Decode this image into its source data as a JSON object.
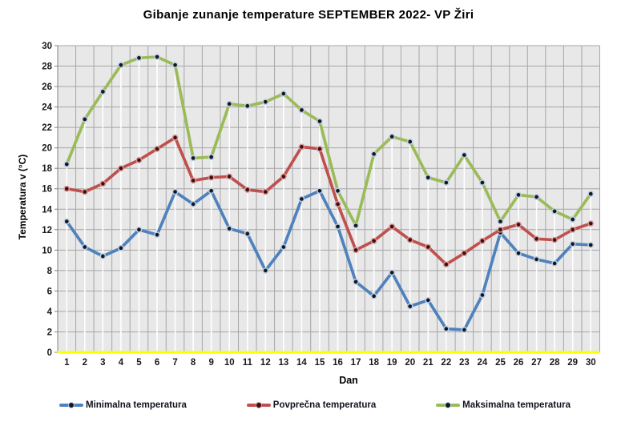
{
  "title": "Gibanje zunanje temperature SEPTEMBER 2022- VP Žiri",
  "chart_data": {
    "type": "line",
    "x": [
      1,
      2,
      3,
      4,
      5,
      6,
      7,
      8,
      9,
      10,
      11,
      12,
      13,
      14,
      15,
      16,
      17,
      18,
      19,
      20,
      21,
      22,
      23,
      24,
      25,
      26,
      27,
      28,
      29,
      30
    ],
    "xlabel": "Dan",
    "ylabel": "Temperatura v (°C)",
    "ylim": [
      0,
      30
    ],
    "ytick_step": 2,
    "grid": true,
    "legend_position": "bottom",
    "plot_bg": "#E8E8E8",
    "gridline_color": "#A6A6A6",
    "axis_line_color": "#808080",
    "zero_line_color": "#FFFF00",
    "dropline_color": "#FFFFFF",
    "series": [
      {
        "name": "Minimalna temperatura",
        "color": "#4F81BD",
        "marker_fill": "#16161f",
        "marker_ring": "#b9cde5",
        "values": [
          12.8,
          10.3,
          9.4,
          10.2,
          12.0,
          11.5,
          15.7,
          14.5,
          15.8,
          12.1,
          11.6,
          8.0,
          10.3,
          15.0,
          15.8,
          12.3,
          6.9,
          5.5,
          7.8,
          4.5,
          5.1,
          2.3,
          2.2,
          5.6,
          11.7,
          9.7,
          9.1,
          8.7,
          10.6,
          10.5
        ]
      },
      {
        "name": "Povprečna temperatura",
        "color": "#C0504D",
        "marker_fill": "#3a1114",
        "marker_ring": "#d99694",
        "values": [
          16.0,
          15.7,
          16.5,
          18.0,
          18.8,
          19.9,
          21.0,
          16.8,
          17.1,
          17.2,
          15.9,
          15.7,
          17.2,
          20.1,
          19.9,
          14.5,
          10.0,
          10.9,
          12.3,
          11.0,
          10.3,
          8.6,
          9.7,
          10.9,
          12.0,
          12.5,
          11.1,
          11.0,
          12.0,
          12.6
        ]
      },
      {
        "name": "Maksimalna temperatura",
        "color": "#9BBB59",
        "marker_fill": "#16161f",
        "marker_ring": "#b9cde5",
        "values": [
          18.4,
          22.8,
          25.5,
          28.1,
          28.8,
          28.9,
          28.1,
          19.0,
          19.1,
          24.3,
          24.1,
          24.5,
          25.3,
          23.7,
          22.6,
          15.8,
          12.4,
          19.4,
          21.1,
          20.6,
          17.1,
          16.6,
          19.3,
          16.6,
          12.8,
          15.4,
          15.2,
          13.8,
          13.0,
          15.5
        ]
      }
    ]
  }
}
